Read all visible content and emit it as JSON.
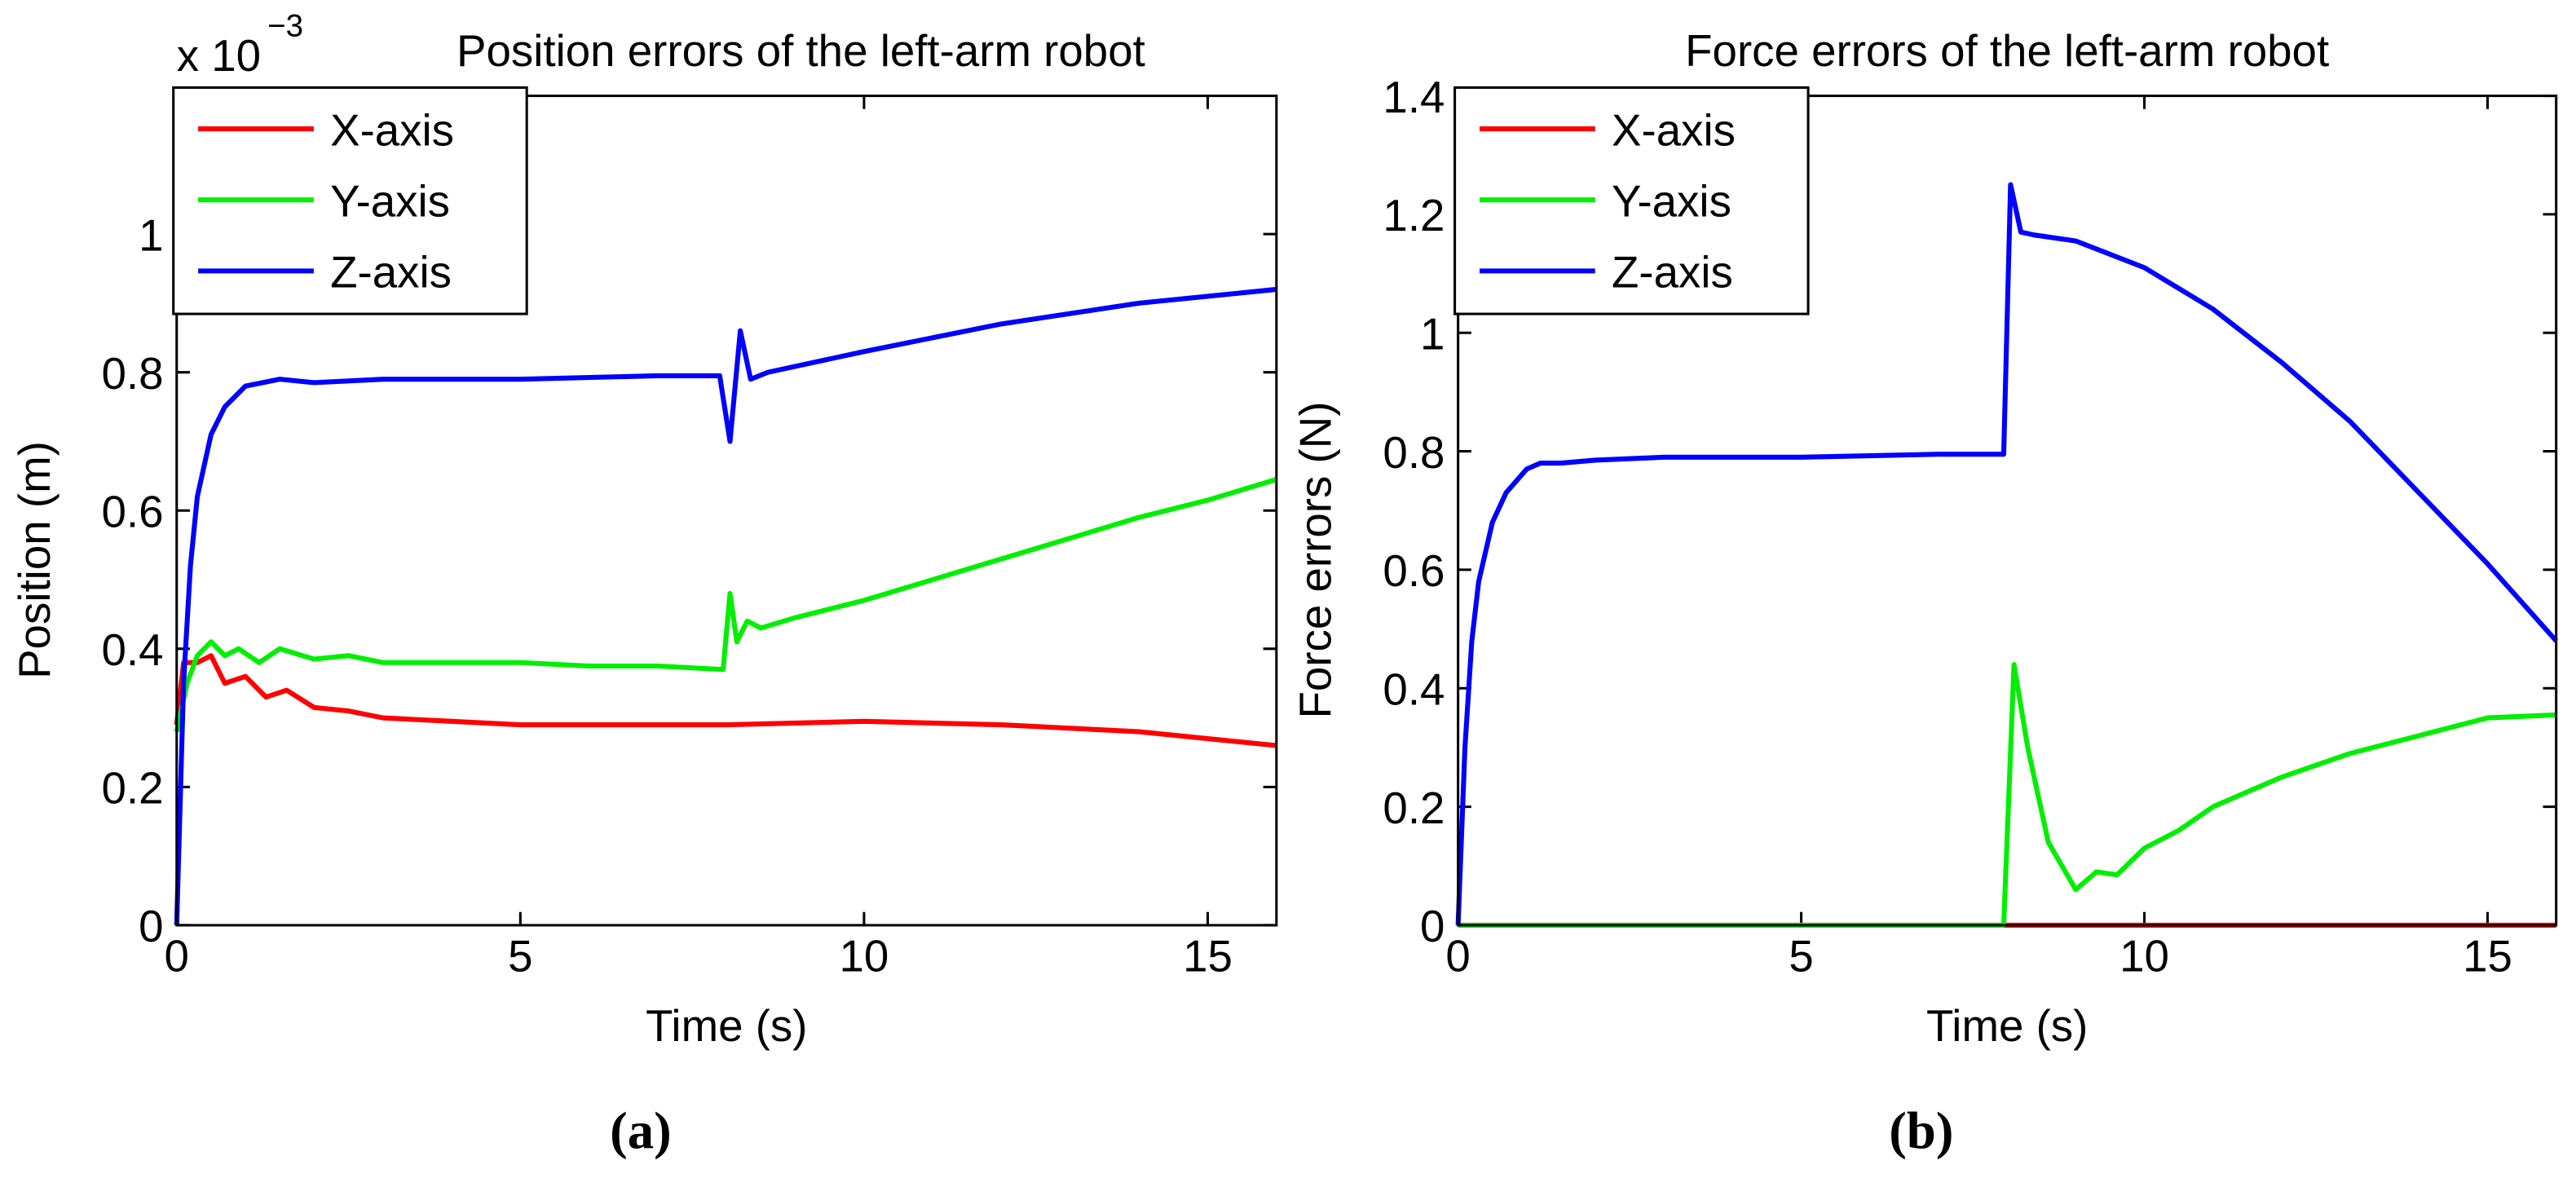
{
  "chart_data": [
    {
      "type": "line",
      "title": "Position errors of the left-arm robot",
      "caption": "(a)",
      "multiplier_base": "x 10",
      "multiplier_exponent": "−3",
      "xlabel": "Time (s)",
      "ylabel": "Position (m)",
      "xlim": [
        0,
        16
      ],
      "xticks": [
        0,
        5,
        10,
        15
      ],
      "ylim": [
        0,
        1.2
      ],
      "yticks": [
        0,
        0.2,
        0.4,
        0.6,
        0.8,
        1
      ],
      "legend": "upper left",
      "grid": false,
      "series": [
        {
          "name": "X-axis",
          "color": "#ff0000",
          "x": [
            0,
            0.1,
            0.3,
            0.5,
            0.7,
            1,
            1.3,
            1.6,
            2,
            2.5,
            3,
            4,
            5,
            7,
            8,
            10,
            12,
            14,
            16
          ],
          "values": [
            0.29,
            0.38,
            0.38,
            0.39,
            0.35,
            0.36,
            0.33,
            0.34,
            0.315,
            0.31,
            0.3,
            0.295,
            0.29,
            0.29,
            0.29,
            0.295,
            0.29,
            0.28,
            0.26
          ]
        },
        {
          "name": "Y-axis",
          "color": "#00ee00",
          "x": [
            0,
            0.15,
            0.3,
            0.5,
            0.7,
            0.9,
            1.2,
            1.5,
            2,
            2.5,
            3,
            4,
            5,
            6,
            7,
            7.95,
            8.05,
            8.15,
            8.3,
            8.5,
            9,
            10,
            11,
            12,
            13,
            14,
            15,
            16
          ],
          "values": [
            0.28,
            0.35,
            0.39,
            0.41,
            0.39,
            0.4,
            0.38,
            0.4,
            0.385,
            0.39,
            0.38,
            0.38,
            0.38,
            0.375,
            0.375,
            0.37,
            0.48,
            0.41,
            0.44,
            0.43,
            0.445,
            0.47,
            0.5,
            0.53,
            0.56,
            0.59,
            0.615,
            0.645
          ]
        },
        {
          "name": "Z-axis",
          "color": "#0000ff",
          "x": [
            0,
            0.1,
            0.2,
            0.3,
            0.5,
            0.7,
            1,
            1.5,
            2,
            3,
            5,
            7,
            7.9,
            8.05,
            8.2,
            8.35,
            8.6,
            10,
            12,
            14,
            16
          ],
          "values": [
            0,
            0.35,
            0.52,
            0.62,
            0.71,
            0.75,
            0.78,
            0.79,
            0.785,
            0.79,
            0.79,
            0.795,
            0.795,
            0.7,
            0.86,
            0.79,
            0.8,
            0.83,
            0.87,
            0.9,
            0.92
          ]
        }
      ]
    },
    {
      "type": "line",
      "title": "Force errors of the left-arm robot",
      "caption": "(b)",
      "xlabel": "Time (s)",
      "ylabel": "Force errors (N)",
      "xlim": [
        0,
        16
      ],
      "xticks": [
        0,
        5,
        10,
        15
      ],
      "ylim": [
        0,
        1.4
      ],
      "yticks": [
        0,
        0.2,
        0.4,
        0.6,
        0.8,
        1,
        1.2,
        1.4
      ],
      "legend": "upper left",
      "grid": false,
      "series": [
        {
          "name": "X-axis",
          "color": "#ff0000",
          "x": [
            0,
            16
          ],
          "values": [
            0,
            0
          ]
        },
        {
          "name": "Y-axis",
          "color": "#00ee00",
          "x": [
            0,
            7.95,
            8.1,
            8.3,
            8.6,
            9,
            9.3,
            9.6,
            10,
            10.5,
            11,
            12,
            13,
            14,
            15,
            16
          ],
          "values": [
            0,
            0,
            0.44,
            0.3,
            0.14,
            0.06,
            0.09,
            0.085,
            0.13,
            0.16,
            0.2,
            0.25,
            0.29,
            0.32,
            0.35,
            0.355
          ]
        },
        {
          "name": "Z-axis",
          "color": "#0000ff",
          "x": [
            0,
            0.1,
            0.2,
            0.3,
            0.5,
            0.7,
            1,
            1.2,
            1.5,
            2,
            3,
            5,
            7,
            7.95,
            8.05,
            8.2,
            8.4,
            9,
            10,
            11,
            12,
            13,
            14,
            15,
            16
          ],
          "values": [
            0,
            0.3,
            0.48,
            0.58,
            0.68,
            0.73,
            0.77,
            0.78,
            0.78,
            0.785,
            0.79,
            0.79,
            0.795,
            0.795,
            1.25,
            1.17,
            1.165,
            1.155,
            1.11,
            1.04,
            0.95,
            0.85,
            0.73,
            0.61,
            0.48
          ]
        }
      ]
    }
  ]
}
